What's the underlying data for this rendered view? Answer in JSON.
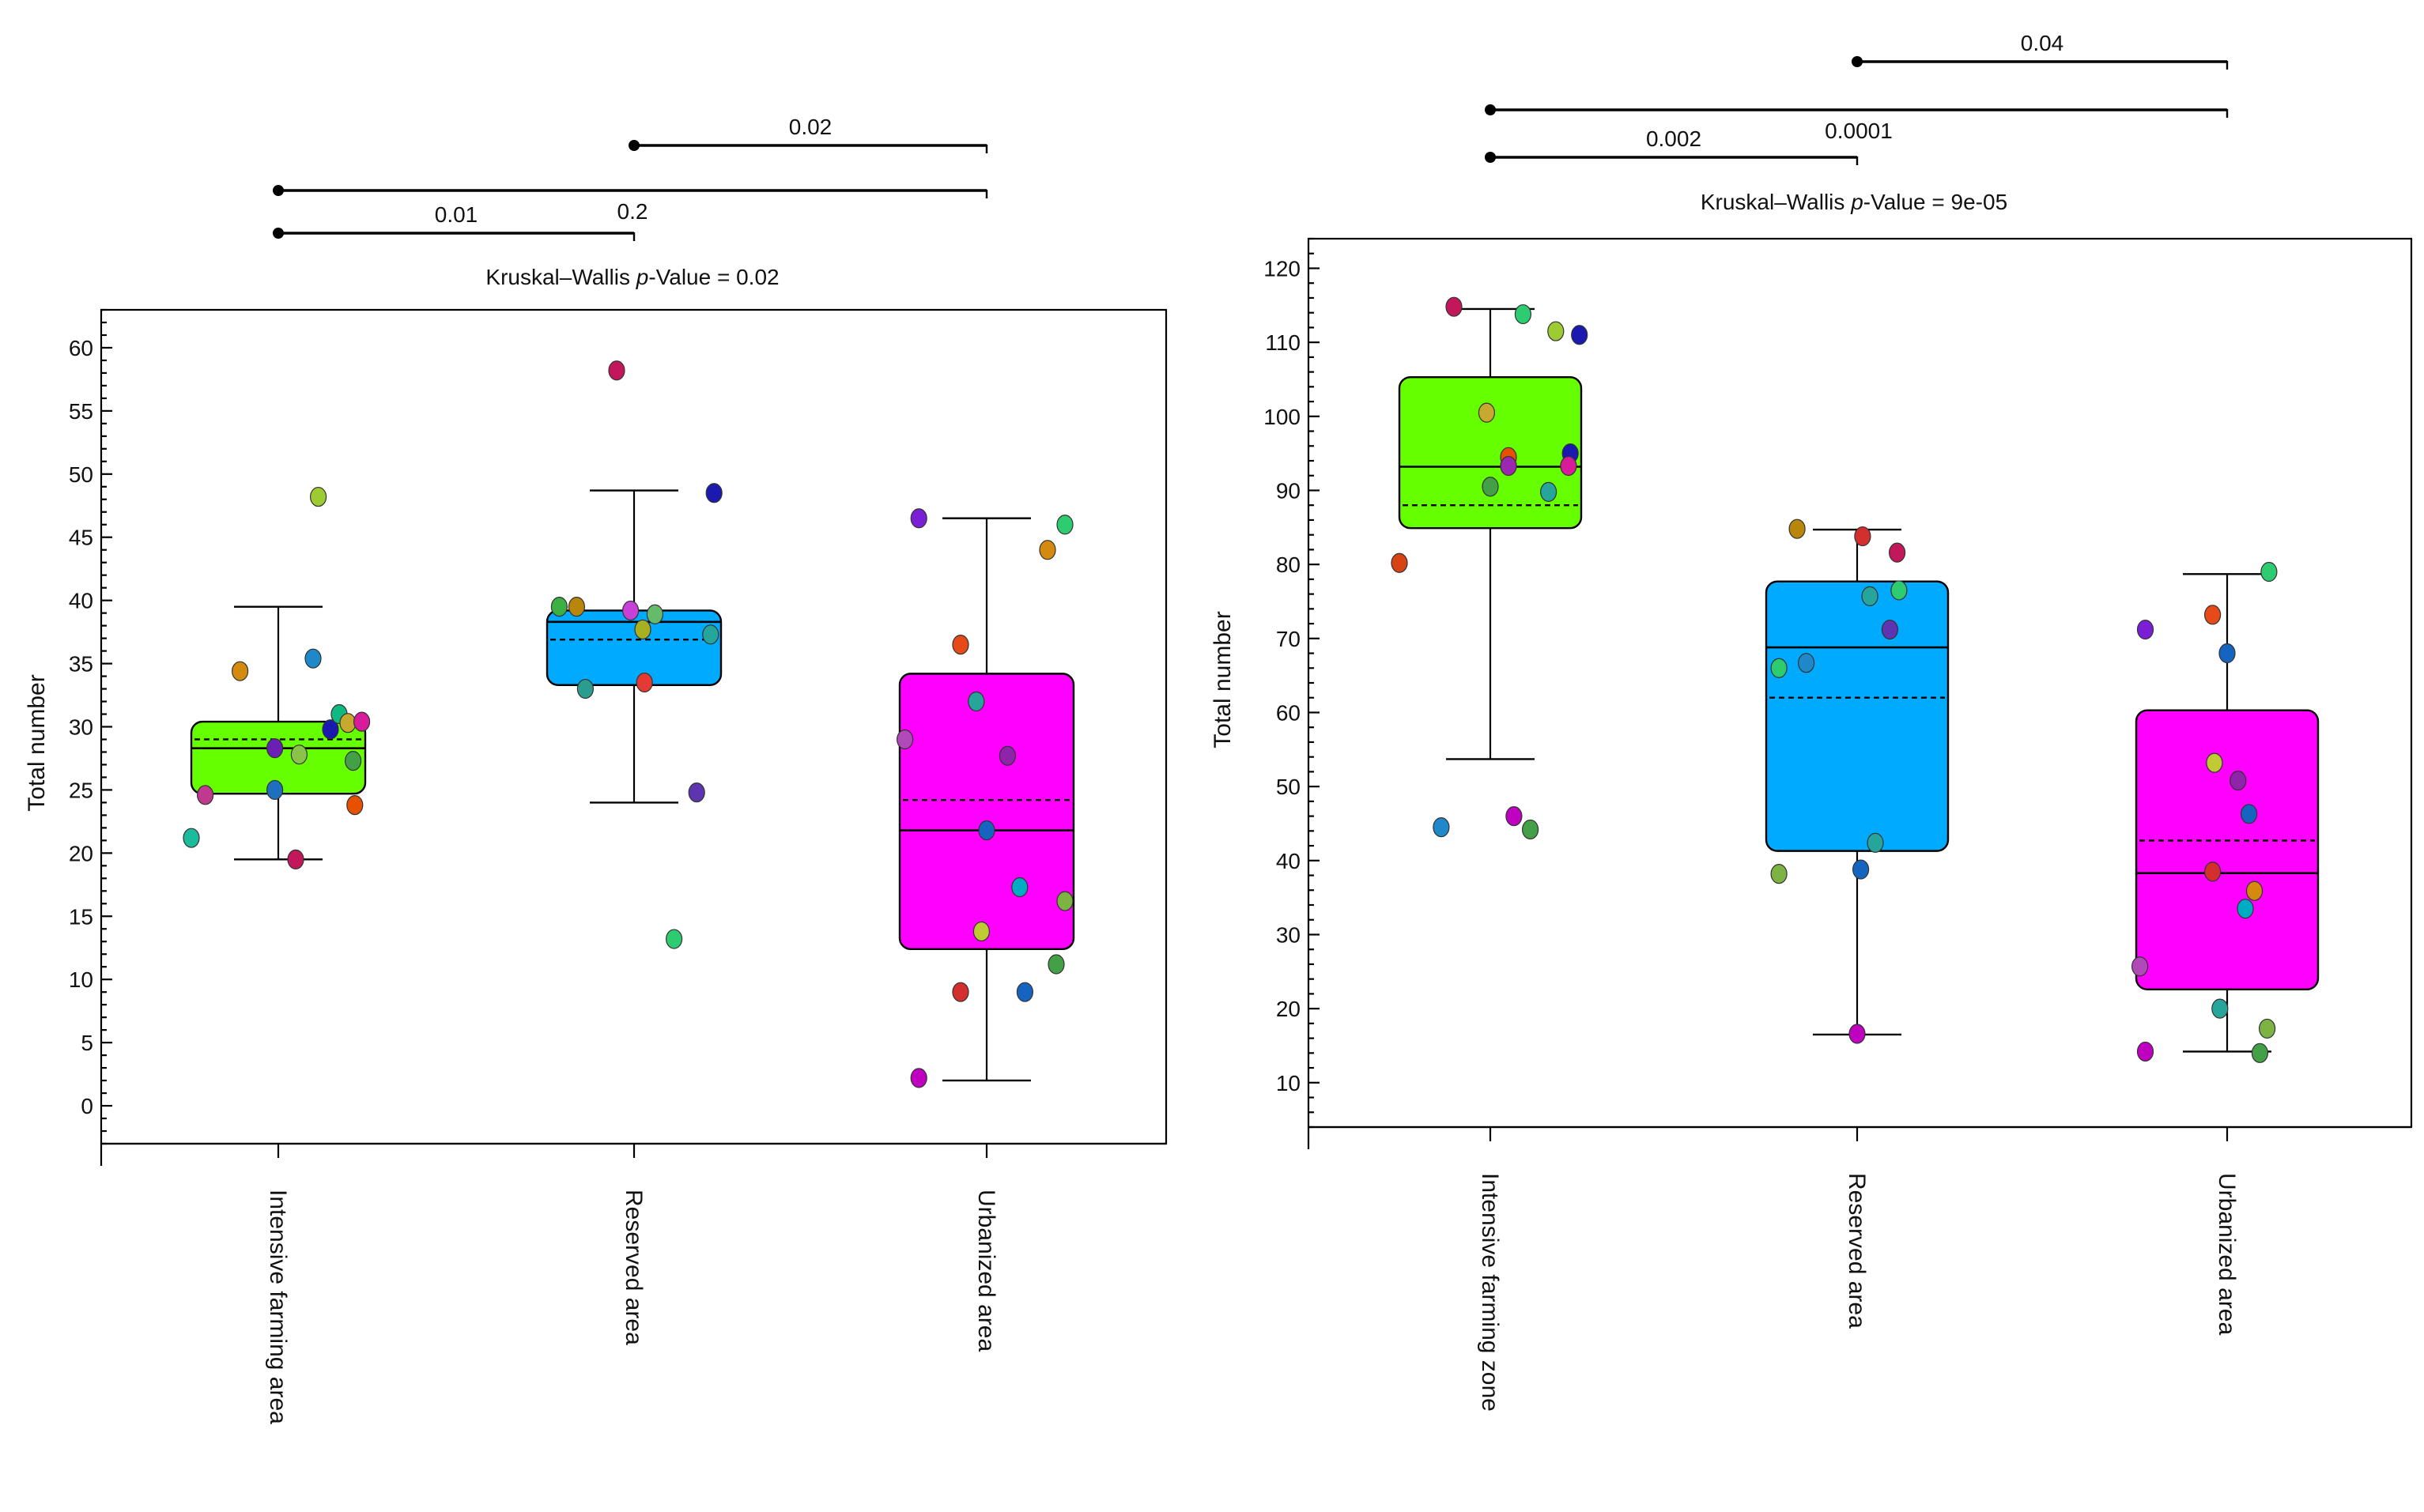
{
  "chart_data": [
    {
      "type": "box",
      "ylabel": "Total number",
      "ylim": [
        -3,
        63
      ],
      "yticks": [
        0,
        5,
        10,
        15,
        20,
        25,
        30,
        35,
        40,
        45,
        50,
        55,
        60
      ],
      "test_label_prefix": "Kruskal–Wallis ",
      "test_label_p": "p",
      "test_label_suffix": "-Value = 0.02",
      "categories": [
        "Intensive farming area",
        "Reserved area",
        "Urbanized area"
      ],
      "boxes": [
        {
          "category": "Intensive farming area",
          "fill": "#66ff00",
          "min": 19.5,
          "q1": 24.7,
          "median": 28.3,
          "mean": 29.0,
          "q3": 30.4,
          "max": 39.5
        },
        {
          "category": "Reserved area",
          "fill": "#00aaff",
          "min": 24.0,
          "q1": 33.3,
          "median": 38.3,
          "mean": 36.9,
          "q3": 39.2,
          "max": 48.7
        },
        {
          "category": "Urbanized area",
          "fill": "#ff00ff",
          "min": 2.0,
          "q1": 12.4,
          "median": 21.8,
          "mean": 24.2,
          "q3": 34.2,
          "max": 46.5
        }
      ],
      "points": [
        [
          {
            "dx": -0.5,
            "y": 21.2,
            "color": "#1abc9c"
          },
          {
            "dx": -0.42,
            "y": 24.6,
            "color": "#c0398f"
          },
          {
            "dx": -0.22,
            "y": 34.4,
            "color": "#d4890f"
          },
          {
            "dx": -0.02,
            "y": 28.3,
            "color": "#6a1fb5"
          },
          {
            "dx": -0.02,
            "y": 25.0,
            "color": "#1f6fbf"
          },
          {
            "dx": 0.1,
            "y": 19.5,
            "color": "#c2185b"
          },
          {
            "dx": 0.12,
            "y": 27.8,
            "color": "#8bc34a"
          },
          {
            "dx": 0.2,
            "y": 35.4,
            "color": "#1e88c8"
          },
          {
            "dx": 0.23,
            "y": 48.2,
            "color": "#9ccc32"
          },
          {
            "dx": 0.3,
            "y": 29.8,
            "color": "#1a1ab0"
          },
          {
            "dx": 0.35,
            "y": 31.0,
            "color": "#10b981"
          },
          {
            "dx": 0.4,
            "y": 30.3,
            "color": "#c8a82e"
          },
          {
            "dx": 0.43,
            "y": 27.3,
            "color": "#43a047"
          },
          {
            "dx": 0.44,
            "y": 23.8,
            "color": "#e65100"
          },
          {
            "dx": 0.48,
            "y": 30.4,
            "color": "#d81b9a"
          }
        ],
        [
          {
            "dx": -0.43,
            "y": 39.5,
            "color": "#3cb043"
          },
          {
            "dx": -0.33,
            "y": 39.5,
            "color": "#b8860b"
          },
          {
            "dx": -0.28,
            "y": 33.0,
            "color": "#2a9d8f"
          },
          {
            "dx": -0.1,
            "y": 58.2,
            "color": "#c2185b"
          },
          {
            "dx": -0.02,
            "y": 39.2,
            "color": "#c840d8"
          },
          {
            "dx": 0.05,
            "y": 37.7,
            "color": "#a8b020"
          },
          {
            "dx": 0.06,
            "y": 33.5,
            "color": "#e53935"
          },
          {
            "dx": 0.12,
            "y": 38.9,
            "color": "#66bb6a"
          },
          {
            "dx": 0.23,
            "y": 13.2,
            "color": "#2ecc71"
          },
          {
            "dx": 0.36,
            "y": 24.8,
            "color": "#5e35b1"
          },
          {
            "dx": 0.44,
            "y": 37.3,
            "color": "#26a69a"
          },
          {
            "dx": 0.46,
            "y": 48.5,
            "color": "#1a1ab0"
          }
        ],
        [
          {
            "dx": -0.47,
            "y": 29.0,
            "color": "#b04ab8"
          },
          {
            "dx": -0.39,
            "y": 2.2,
            "color": "#c000c0"
          },
          {
            "dx": -0.39,
            "y": 46.5,
            "color": "#7a1fd6"
          },
          {
            "dx": -0.15,
            "y": 9.0,
            "color": "#d32f2f"
          },
          {
            "dx": -0.15,
            "y": 36.5,
            "color": "#e64a19"
          },
          {
            "dx": -0.03,
            "y": 13.8,
            "color": "#c0ca33"
          },
          {
            "dx": -0.06,
            "y": 32.0,
            "color": "#26a69a"
          },
          {
            "dx": 0.0,
            "y": 21.8,
            "color": "#1565c0"
          },
          {
            "dx": 0.12,
            "y": 27.7,
            "color": "#8e24aa"
          },
          {
            "dx": 0.19,
            "y": 17.3,
            "color": "#00acc1"
          },
          {
            "dx": 0.22,
            "y": 9.0,
            "color": "#1565c0"
          },
          {
            "dx": 0.35,
            "y": 44.0,
            "color": "#d4890f"
          },
          {
            "dx": 0.4,
            "y": 11.2,
            "color": "#43a047"
          },
          {
            "dx": 0.45,
            "y": 16.2,
            "color": "#7cb342"
          },
          {
            "dx": 0.45,
            "y": 46.0,
            "color": "#2ecc71"
          }
        ]
      ],
      "comparisons": [
        {
          "from": 0,
          "to": 1,
          "label": "0.01"
        },
        {
          "from": 0,
          "to": 2,
          "label": "0.2"
        },
        {
          "from": 1,
          "to": 2,
          "label": "0.02"
        }
      ]
    },
    {
      "type": "box",
      "ylabel": "Total number",
      "ylim": [
        4,
        124
      ],
      "yticks": [
        10,
        20,
        30,
        40,
        50,
        60,
        70,
        80,
        90,
        100,
        110,
        120
      ],
      "test_label_prefix": "Kruskal–Wallis ",
      "test_label_p": "p",
      "test_label_suffix": "-Value = 9e-05",
      "categories": [
        "Intensive farming zone",
        "Reserved area",
        "Urbanized area"
      ],
      "boxes": [
        {
          "category": "Intensive farming zone",
          "fill": "#66ff00",
          "min": 53.7,
          "q1": 84.9,
          "median": 93.2,
          "mean": 88.0,
          "q3": 105.3,
          "max": 114.5
        },
        {
          "category": "Reserved area",
          "fill": "#00aaff",
          "min": 16.5,
          "q1": 41.3,
          "median": 68.8,
          "mean": 62.0,
          "q3": 77.7,
          "max": 84.7
        },
        {
          "category": "Urbanized area",
          "fill": "#ff00ff",
          "min": 14.2,
          "q1": 22.6,
          "median": 38.3,
          "mean": 42.7,
          "q3": 60.3,
          "max": 78.7
        }
      ],
      "points": [
        [
          {
            "dx": -0.5,
            "y": 80.2,
            "color": "#d84315"
          },
          {
            "dx": -0.27,
            "y": 44.5,
            "color": "#1e88c8"
          },
          {
            "dx": -0.2,
            "y": 114.8,
            "color": "#c2185b"
          },
          {
            "dx": -0.02,
            "y": 100.5,
            "color": "#c8a82e"
          },
          {
            "dx": 0.0,
            "y": 90.5,
            "color": "#43a047"
          },
          {
            "dx": 0.1,
            "y": 94.5,
            "color": "#e65100"
          },
          {
            "dx": 0.1,
            "y": 93.3,
            "color": "#9c27b0"
          },
          {
            "dx": 0.13,
            "y": 46.0,
            "color": "#c000c0"
          },
          {
            "dx": 0.18,
            "y": 113.8,
            "color": "#2ecc71"
          },
          {
            "dx": 0.22,
            "y": 44.2,
            "color": "#43a047"
          },
          {
            "dx": 0.32,
            "y": 89.8,
            "color": "#26a69a"
          },
          {
            "dx": 0.36,
            "y": 111.5,
            "color": "#9ccc32"
          },
          {
            "dx": 0.44,
            "y": 95.0,
            "color": "#1a1ab0"
          },
          {
            "dx": 0.43,
            "y": 93.3,
            "color": "#d81b9a"
          },
          {
            "dx": 0.49,
            "y": 111.0,
            "color": "#1a1ab0"
          }
        ],
        [
          {
            "dx": -0.43,
            "y": 38.2,
            "color": "#7cb342"
          },
          {
            "dx": -0.43,
            "y": 66.0,
            "color": "#2ecc71"
          },
          {
            "dx": -0.33,
            "y": 84.8,
            "color": "#b8860b"
          },
          {
            "dx": -0.28,
            "y": 66.7,
            "color": "#1e88c8"
          },
          {
            "dx": 0.0,
            "y": 16.6,
            "color": "#c000c0"
          },
          {
            "dx": 0.02,
            "y": 38.8,
            "color": "#1565c0"
          },
          {
            "dx": 0.03,
            "y": 83.8,
            "color": "#d32f2f"
          },
          {
            "dx": 0.07,
            "y": 75.7,
            "color": "#26a69a"
          },
          {
            "dx": 0.1,
            "y": 42.4,
            "color": "#26a69a"
          },
          {
            "dx": 0.18,
            "y": 71.2,
            "color": "#5e35b1"
          },
          {
            "dx": 0.22,
            "y": 81.6,
            "color": "#c2185b"
          },
          {
            "dx": 0.23,
            "y": 76.5,
            "color": "#2ecc71"
          }
        ],
        [
          {
            "dx": -0.48,
            "y": 25.7,
            "color": "#b04ab8"
          },
          {
            "dx": -0.45,
            "y": 14.2,
            "color": "#c000c0"
          },
          {
            "dx": -0.45,
            "y": 71.2,
            "color": "#7a1fd6"
          },
          {
            "dx": -0.08,
            "y": 38.5,
            "color": "#d32f2f"
          },
          {
            "dx": -0.08,
            "y": 73.2,
            "color": "#e64a19"
          },
          {
            "dx": -0.07,
            "y": 53.2,
            "color": "#c0ca33"
          },
          {
            "dx": -0.04,
            "y": 20.0,
            "color": "#26a69a"
          },
          {
            "dx": 0.0,
            "y": 68.0,
            "color": "#1565c0"
          },
          {
            "dx": 0.06,
            "y": 50.8,
            "color": "#8e24aa"
          },
          {
            "dx": 0.1,
            "y": 33.5,
            "color": "#00acc1"
          },
          {
            "dx": 0.12,
            "y": 46.3,
            "color": "#1565c0"
          },
          {
            "dx": 0.15,
            "y": 35.9,
            "color": "#d4890f"
          },
          {
            "dx": 0.18,
            "y": 14.0,
            "color": "#43a047"
          },
          {
            "dx": 0.22,
            "y": 17.3,
            "color": "#7cb342"
          },
          {
            "dx": 0.23,
            "y": 79.0,
            "color": "#2ecc71"
          }
        ]
      ],
      "comparisons": [
        {
          "from": 0,
          "to": 1,
          "label": "0.002"
        },
        {
          "from": 0,
          "to": 2,
          "label": "0.0001"
        },
        {
          "from": 1,
          "to": 2,
          "label": "0.04"
        }
      ]
    }
  ]
}
